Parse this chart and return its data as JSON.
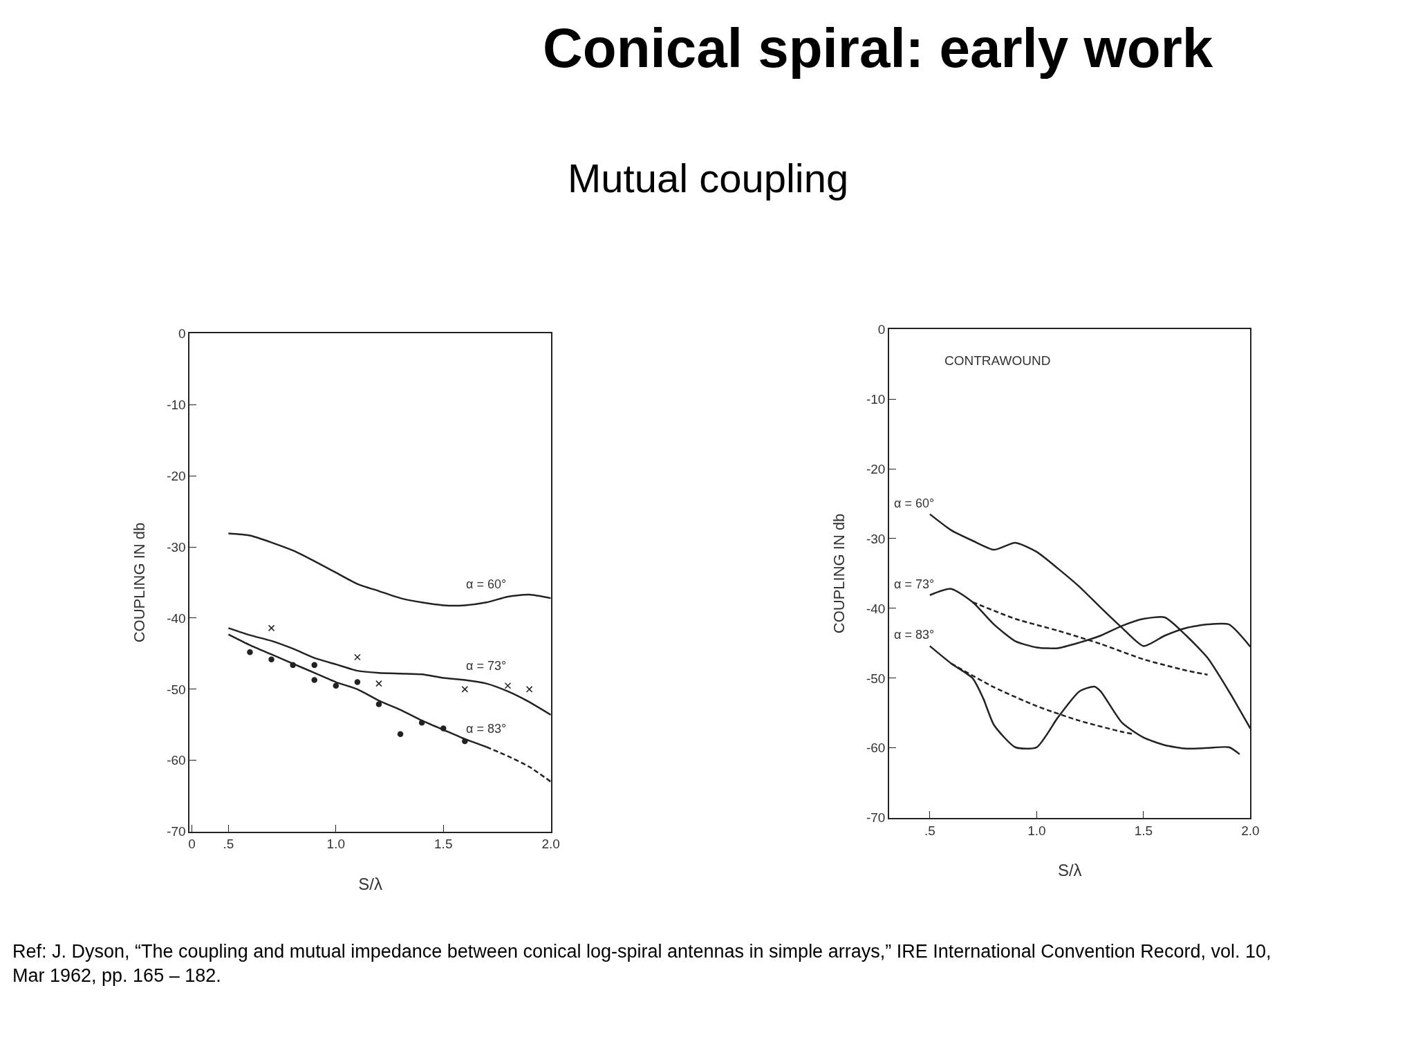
{
  "chart_data": [
    {
      "type": "line",
      "title": "Conical spiral: early work",
      "subtitle": "Mutual coupling",
      "xlabel": "S/λ",
      "ylabel": "COUPLING IN db",
      "xlim": [
        0.32,
        2.0
      ],
      "ylim": [
        -70,
        0
      ],
      "xticks": [
        {
          "value": 0.33,
          "label": "0"
        },
        {
          "value": 0.5,
          "label": ".5"
        },
        {
          "value": 1.0,
          "label": "1.0"
        },
        {
          "value": 1.5,
          "label": "1.5"
        },
        {
          "value": 2.0,
          "label": "2.0"
        }
      ],
      "yticks": [
        -70,
        -60,
        -50,
        -40,
        -30,
        -20,
        -10,
        0
      ],
      "marker": "none",
      "line_style": "solid",
      "series": [
        {
          "name": "α = 60°",
          "color": "#222222",
          "x": [
            0.5,
            0.6,
            0.8,
            0.9,
            1.0,
            1.1,
            1.2,
            1.3,
            1.4,
            1.5,
            1.6,
            1.7,
            1.8,
            1.9,
            2.0
          ],
          "values": [
            -28.1,
            -28.4,
            -30.5,
            -32,
            -33.6,
            -35.2,
            -36.2,
            -37.2,
            -37.8,
            -38.2,
            -38.2,
            -37.8,
            -37,
            -36.7,
            -37.2
          ]
        },
        {
          "name": "α = 73°",
          "color": "#222222",
          "x": [
            0.5,
            0.6,
            0.7,
            0.8,
            0.9,
            1.0,
            1.1,
            1.2,
            1.3,
            1.4,
            1.5,
            1.6,
            1.7,
            1.8,
            1.9,
            2.0
          ],
          "values": [
            -41.4,
            -42.4,
            -43.2,
            -44.3,
            -45.6,
            -46.5,
            -47.4,
            -47.7,
            -47.8,
            -47.9,
            -48.4,
            -48.7,
            -49.2,
            -50.3,
            -51.8,
            -53.6
          ]
        },
        {
          "name": "α = 83°",
          "color": "#222222",
          "x": [
            0.5,
            0.6,
            0.7,
            0.8,
            0.9,
            1.0,
            1.1,
            1.2,
            1.3,
            1.4,
            1.5,
            1.6,
            1.7
          ],
          "values": [
            -42.3,
            -43.8,
            -45.1,
            -46.4,
            -47.7,
            -49,
            -50,
            -51.6,
            -52.9,
            -54.4,
            -55.7,
            -57,
            -58.1
          ]
        },
        {
          "color": "#222222",
          "line_style": "dashed",
          "x": [
            1.7,
            1.8,
            1.9,
            2.0
          ],
          "values": [
            -58.1,
            -59.4,
            -60.9,
            -63
          ]
        },
        {
          "type": "scatter",
          "marker": "cross",
          "color": "#222222",
          "x": [
            0.7,
            1.1,
            1.2,
            1.6,
            1.8,
            1.9
          ],
          "values": [
            -41.4,
            -45.5,
            -49.2,
            -50,
            -49.5,
            -50
          ]
        },
        {
          "type": "scatter",
          "marker": "circle",
          "color": "#222222",
          "x": [
            0.6,
            0.7,
            0.8,
            0.9,
            0.9,
            1.0,
            1.1,
            1.2,
            1.3,
            1.4,
            1.5,
            1.6
          ],
          "values": [
            -44.8,
            -45.8,
            -46.6,
            -46.6,
            -48.7,
            -49.5,
            -49,
            -52.1,
            -56.3,
            -54.7,
            -55.5,
            -57.3
          ]
        }
      ]
    },
    {
      "type": "line",
      "xlabel": "S/λ",
      "ylabel": "COUPLING IN db",
      "xlim": [
        0.31,
        2.0
      ],
      "ylim": [
        -70,
        0
      ],
      "xticks": [
        {
          "value": 0.5,
          "label": ".5"
        },
        {
          "value": 1.0,
          "label": "1.0"
        },
        {
          "value": 1.5,
          "label": "1.5"
        },
        {
          "value": 2.0,
          "label": "2.0"
        }
      ],
      "yticks": [
        -70,
        -60,
        -50,
        -40,
        -30,
        -20,
        -10,
        0
      ],
      "marker": "none",
      "line_style": "solid",
      "series": [
        {
          "name": "α = 60°",
          "color": "#222222",
          "x": [
            0.5,
            0.6,
            0.7,
            0.8,
            0.9,
            1.0,
            1.1,
            1.2,
            1.3,
            1.4,
            1.5,
            1.6,
            1.7,
            1.8,
            1.9,
            2.0
          ],
          "values": [
            -26.5,
            -28.8,
            -30.3,
            -31.6,
            -30.6,
            -31.9,
            -34.3,
            -36.9,
            -39.9,
            -42.8,
            -45.4,
            -43.9,
            -42.8,
            -42.3,
            -42.3,
            -45.5
          ]
        },
        {
          "name": "α = 73°",
          "color": "#222222",
          "x": [
            0.5,
            0.6,
            0.7,
            0.8,
            0.9,
            1.0,
            1.1,
            1.2,
            1.3,
            1.4,
            1.5,
            1.6,
            1.7,
            1.8,
            1.9,
            2.0
          ],
          "values": [
            -38.1,
            -37.2,
            -39.1,
            -42.3,
            -44.7,
            -45.6,
            -45.7,
            -44.9,
            -43.9,
            -42.5,
            -41.5,
            -41.3,
            -43.9,
            -47.1,
            -51.9,
            -57.2
          ]
        },
        {
          "color": "#222222",
          "line_style": "dashed",
          "x": [
            0.7,
            0.9,
            1.1,
            1.3,
            1.5,
            1.7,
            1.8
          ],
          "values": [
            -39.1,
            -41.5,
            -43.2,
            -45.1,
            -47.3,
            -48.9,
            -49.5
          ]
        },
        {
          "name": "α = 83°",
          "color": "#222222",
          "x": [
            0.5,
            0.6,
            0.7,
            0.75,
            0.8,
            0.9,
            1.0,
            1.1,
            1.2,
            1.27,
            1.3,
            1.4,
            1.5,
            1.6,
            1.7,
            1.8,
            1.9,
            1.95
          ],
          "values": [
            -45.4,
            -47.9,
            -50,
            -52.9,
            -56.7,
            -59.9,
            -59.9,
            -55.6,
            -51.9,
            -51.2,
            -51.9,
            -56.4,
            -58.5,
            -59.6,
            -60.1,
            -60,
            -59.9,
            -60.9
          ]
        },
        {
          "color": "#222222",
          "line_style": "dashed",
          "x": [
            0.6,
            0.8,
            1.0,
            1.2,
            1.4,
            1.45
          ],
          "values": [
            -47.9,
            -51.3,
            -54,
            -56.1,
            -57.7,
            -58
          ]
        }
      ],
      "annotations": [
        "CONTRAWOUND",
        "Ref: J. Dyson, “The coupling and mutual impedance between conical log-spiral antennas in simple arrays,” IRE International Convention Record, vol. 10, Mar 1962, pp. 165 – 182."
      ]
    }
  ]
}
